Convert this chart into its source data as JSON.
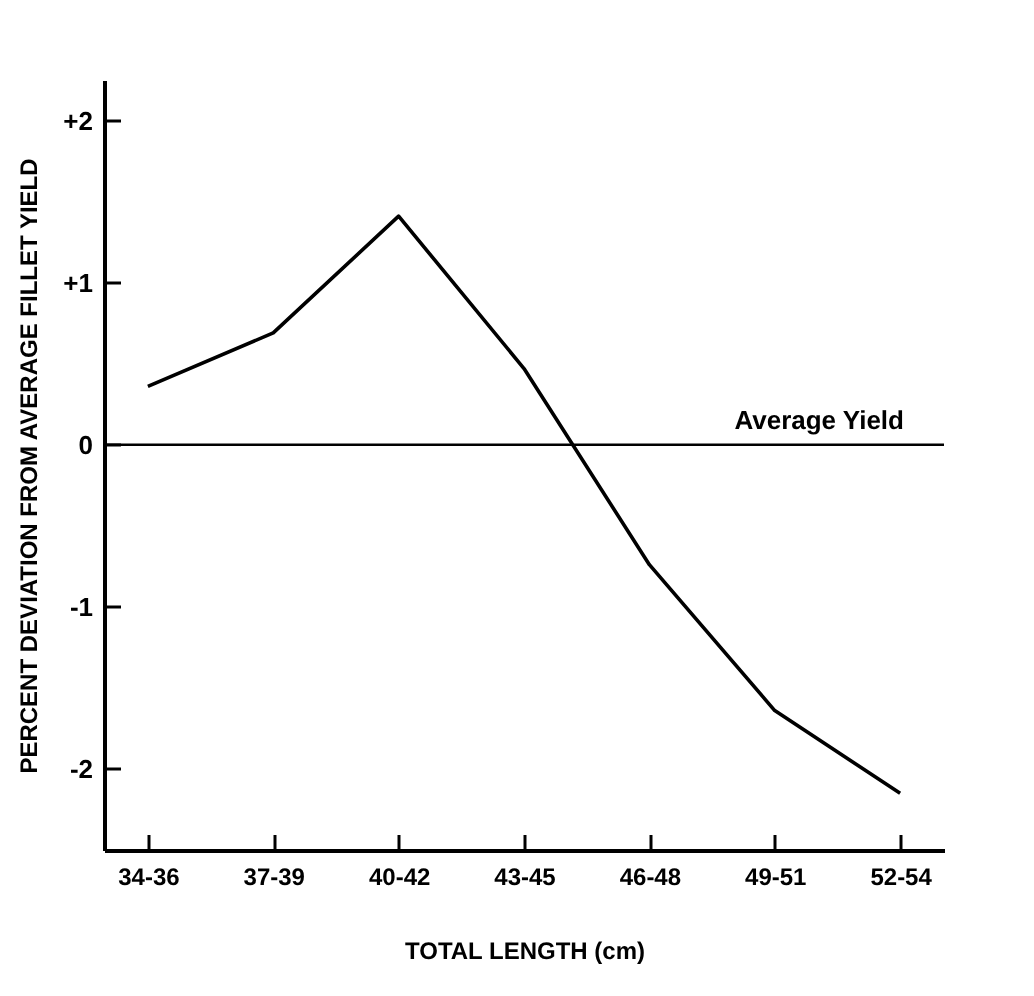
{
  "chart_data": {
    "type": "line",
    "xlabel": "TOTAL LENGTH (cm)",
    "ylabel": "PERCENT DEVIATION FROM AVERAGE FILLET YIELD",
    "categories": [
      "34-36",
      "37-39",
      "40-42",
      "43-45",
      "46-48",
      "49-51",
      "52-54"
    ],
    "series": [
      {
        "color": "#000000",
        "values": [
          0.36,
          0.69,
          1.41,
          0.47,
          -0.74,
          -1.64,
          -2.15
        ]
      }
    ],
    "ylim": [
      -2.5,
      2.25
    ],
    "yticks": [
      {
        "value": 2,
        "label": "+2"
      },
      {
        "value": 1,
        "label": "+1"
      },
      {
        "value": 0,
        "label": "0"
      },
      {
        "value": -1,
        "label": "-1"
      },
      {
        "value": -2,
        "label": "-2"
      }
    ],
    "ref_lines": [
      {
        "axis": "y",
        "value": 0,
        "label": "Average Yield",
        "color": "#000000"
      }
    ],
    "marker": "none"
  }
}
